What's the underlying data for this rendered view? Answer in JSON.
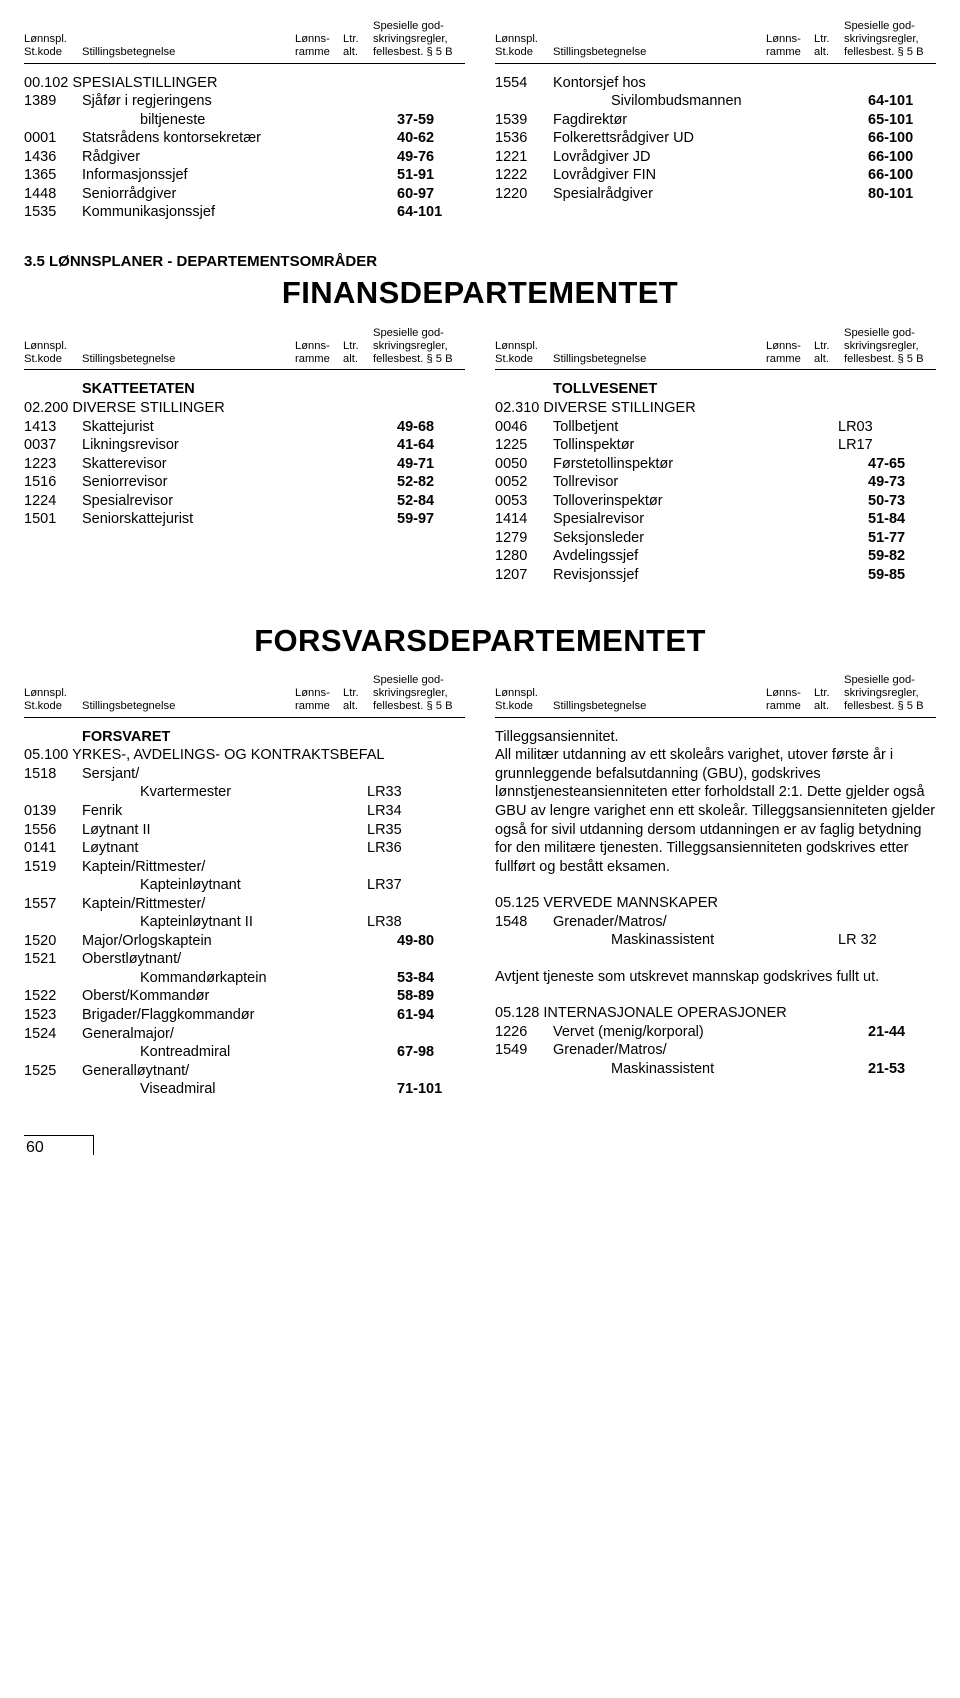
{
  "header": {
    "c1a": "Lønnspl.",
    "c1b": "St.kode",
    "c2": "Stillingsbetegnelse",
    "c3a": "Lønns-",
    "c3b": "ramme",
    "c4a": "Ltr.",
    "c4b": "alt.",
    "c5a": "Spesielle god-",
    "c5b": "skrivingsregler,",
    "c5c": "fellesbest. § 5 B"
  },
  "sec1": {
    "left": {
      "group": "00.102 SPESIALSTILLINGER",
      "rows": [
        {
          "k": "1389",
          "t": "Sjåfør i regjeringens",
          "r": ""
        },
        {
          "k": "",
          "t": "biltjeneste",
          "r": "37-59"
        },
        {
          "k": "0001",
          "t": "Statsrådens kontorsekretær",
          "r": "40-62"
        },
        {
          "k": "1436",
          "t": "Rådgiver",
          "r": "49-76"
        },
        {
          "k": "1365",
          "t": "Informasjonssjef",
          "r": "51-91"
        },
        {
          "k": "1448",
          "t": "Seniorrådgiver",
          "r": "60-97"
        },
        {
          "k": "1535",
          "t": "Kommunikasjonssjef",
          "r": "64-101"
        }
      ]
    },
    "right": {
      "rows": [
        {
          "k": "1554",
          "t": "Kontorsjef hos",
          "r": ""
        },
        {
          "k": "",
          "t": "Sivilombudsmannen",
          "r": "64-101"
        },
        {
          "k": "1539",
          "t": "Fagdirektør",
          "r": "65-101"
        },
        {
          "k": "1536",
          "t": "Folkerettsrådgiver UD",
          "r": "66-100"
        },
        {
          "k": "1221",
          "t": "Lovrådgiver JD",
          "r": "66-100"
        },
        {
          "k": "1222",
          "t": "Lovrådgiver FIN",
          "r": "66-100"
        },
        {
          "k": "1220",
          "t": "Spesialrådgiver",
          "r": "80-101"
        }
      ]
    }
  },
  "section35": {
    "label": "3.5    LØNNSPLANER - DEPARTEMENTSOMRÅDER",
    "dept1": "FINANSDEPARTEMENTET",
    "dept2": "FORSVARSDEPARTEMENTET"
  },
  "finans": {
    "left": {
      "subhead": "SKATTEETATEN",
      "group": "02.200 DIVERSE STILLINGER",
      "rows": [
        {
          "k": "1413",
          "t": "Skattejurist",
          "r": "49-68"
        },
        {
          "k": "0037",
          "t": "Likningsrevisor",
          "r": "41-64"
        },
        {
          "k": "1223",
          "t": "Skatterevisor",
          "r": "49-71"
        },
        {
          "k": "1516",
          "t": "Seniorrevisor",
          "r": "52-82"
        },
        {
          "k": "1224",
          "t": "Spesialrevisor",
          "r": "52-84"
        },
        {
          "k": "1501",
          "t": "Seniorskattejurist",
          "r": "59-97"
        }
      ]
    },
    "right": {
      "subhead": "TOLLVESENET",
      "group": "02.310 DIVERSE STILLINGER",
      "rows": [
        {
          "k": "0046",
          "t": "Tollbetjent",
          "r": "LR03"
        },
        {
          "k": "1225",
          "t": "Tollinspektør",
          "r": "LR17"
        },
        {
          "k": "0050",
          "t": "Førstetollinspektør",
          "r": "47-65"
        },
        {
          "k": "0052",
          "t": "Tollrevisor",
          "r": "49-73"
        },
        {
          "k": "0053",
          "t": "Tolloverinspektør",
          "r": "50-73"
        },
        {
          "k": "1414",
          "t": "Spesialrevisor",
          "r": "51-84"
        },
        {
          "k": "1279",
          "t": "Seksjonsleder",
          "r": "51-77"
        },
        {
          "k": "1280",
          "t": "Avdelingssjef",
          "r": "59-82"
        },
        {
          "k": "1207",
          "t": "Revisjonssjef",
          "r": "59-85"
        }
      ]
    }
  },
  "forsvar": {
    "left": {
      "subhead": "FORSVARET",
      "group": "05.100 YRKES-, AVDELINGS- OG KONTRAKTSBEFAL",
      "rows": [
        {
          "k": "1518",
          "t": "Sersjant/",
          "r": ""
        },
        {
          "k": "",
          "t": "Kvartermester",
          "r": "LR33"
        },
        {
          "k": "0139",
          "t": "Fenrik",
          "r": "LR34"
        },
        {
          "k": "1556",
          "t": "Løytnant II",
          "r": "LR35"
        },
        {
          "k": "0141",
          "t": "Løytnant",
          "r": "LR36"
        },
        {
          "k": "1519",
          "t": "Kaptein/Rittmester/",
          "r": ""
        },
        {
          "k": "",
          "t": "Kapteinløytnant",
          "r": "LR37"
        },
        {
          "k": "1557",
          "t": "Kaptein/Rittmester/",
          "r": ""
        },
        {
          "k": "",
          "t": "Kapteinløytnant II",
          "r": "LR38"
        },
        {
          "k": "1520",
          "t": "Major/Orlogskaptein",
          "r": "49-80"
        },
        {
          "k": "1521",
          "t": "Oberstløytnant/",
          "r": ""
        },
        {
          "k": "",
          "t": "Kommandørkaptein",
          "r": "53-84"
        },
        {
          "k": "1522",
          "t": "Oberst/Kommandør",
          "r": "58-89"
        },
        {
          "k": "1523",
          "t": "Brigader/Flaggkommandør",
          "r": "61-94"
        },
        {
          "k": "1524",
          "t": "Generalmajor/",
          "r": ""
        },
        {
          "k": "",
          "t": "Kontreadmiral",
          "r": "67-98"
        },
        {
          "k": "1525",
          "t": "Generalløytnant/",
          "r": ""
        },
        {
          "k": "",
          "t": "Viseadmiral",
          "r": "71-101"
        }
      ]
    },
    "right": {
      "para1_l1": "Tilleggsansiennitet.",
      "para1": "All militær utdanning av ett skoleårs varighet, utover første år i grunnleggende befalsutdanning (GBU), godskrives lønnstjenesteansienniteten etter forholdstall 2:1. Dette gjelder også GBU av lengre varighet enn ett skoleår. Tilleggsansienniteten gjelder også for sivil utdanning dersom utdanningen er av faglig betydning for den militære tjenesten. Tilleggsansienniteten godskrives etter fullført og bestått eksamen.",
      "group2": "05.125 VERVEDE MANNSKAPER",
      "rows2": [
        {
          "k": "1548",
          "t": "Grenader/Matros/",
          "r": ""
        },
        {
          "k": "",
          "t": "Maskinassistent",
          "r": "LR 32"
        }
      ],
      "para2": "Avtjent tjeneste som utskrevet mannskap godskrives fullt ut.",
      "group3": "05.128 INTERNASJONALE OPERASJONER",
      "rows3": [
        {
          "k": "1226",
          "t": "Vervet (menig/korporal)",
          "r": "21-44"
        },
        {
          "k": "1549",
          "t": "Grenader/Matros/",
          "r": ""
        },
        {
          "k": "",
          "t": "Maskinassistent",
          "r": "21-53"
        }
      ]
    }
  },
  "page_number": "60"
}
